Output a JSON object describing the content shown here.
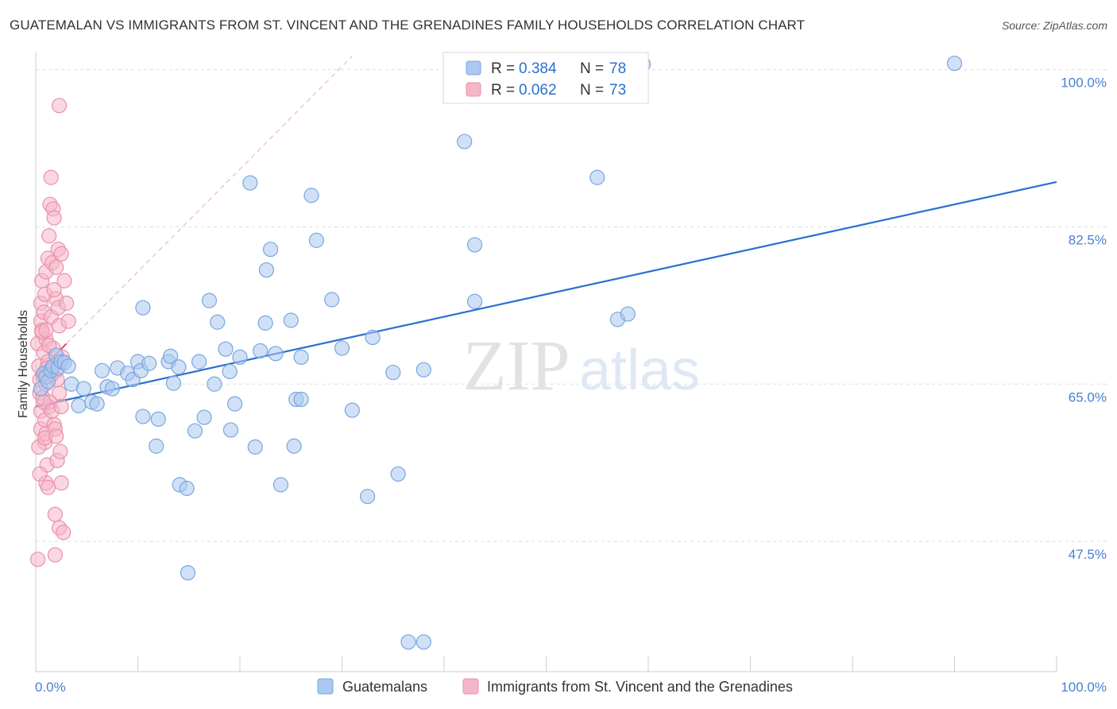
{
  "title": "GUATEMALAN VS IMMIGRANTS FROM ST. VINCENT AND THE GRENADINES FAMILY HOUSEHOLDS CORRELATION CHART",
  "source": "Source: ZipAtlas.com",
  "colors": {
    "blue_fill": "#aac8f0",
    "blue_stroke": "#7aa6dc",
    "blue_line": "#2a6fcf",
    "pink_fill": "#f5b6c8",
    "pink_stroke": "#e891ad",
    "pink_line": "#e0507f",
    "tick_label": "#4a80d0",
    "grid": "#dddddd"
  },
  "legend": {
    "rows": [
      {
        "r_label": "R = ",
        "r_value": "0.384",
        "n_label": "N = ",
        "n_value": "78"
      },
      {
        "r_label": "R = ",
        "r_value": "0.062",
        "n_label": "N = ",
        "n_value": "73"
      }
    ]
  },
  "bottom_legend": [
    "Guatemalans",
    "Immigrants from St. Vincent and the Grenadines"
  ],
  "chart_data": {
    "type": "scatter",
    "xlabel": "",
    "ylabel": "Family Households",
    "x_tick_labels": [
      "0.0%",
      "100.0%"
    ],
    "y_tick_labels": [
      "100.0%",
      "82.5%",
      "65.0%",
      "47.5%"
    ],
    "y_ticks": [
      100.0,
      82.5,
      65.0,
      47.5
    ],
    "xlim": [
      0,
      100
    ],
    "ylim": [
      33,
      102
    ],
    "grid": true,
    "watermark": "ZIPatlas",
    "series": [
      {
        "name": "Guatemalans",
        "points": [
          [
            0.5,
            64.5
          ],
          [
            0.8,
            66.2
          ],
          [
            1.0,
            65.8
          ],
          [
            1.2,
            65.3
          ],
          [
            1.5,
            66.5
          ],
          [
            1.7,
            67.0
          ],
          [
            2.0,
            68.2
          ],
          [
            2.2,
            66.8
          ],
          [
            2.5,
            67.5
          ],
          [
            2.8,
            67.4
          ],
          [
            3.2,
            67.0
          ],
          [
            3.5,
            65.0
          ],
          [
            4.2,
            62.6
          ],
          [
            4.7,
            64.5
          ],
          [
            5.5,
            63.0
          ],
          [
            6.0,
            62.8
          ],
          [
            6.5,
            66.5
          ],
          [
            7.0,
            64.7
          ],
          [
            7.5,
            64.5
          ],
          [
            8.0,
            66.8
          ],
          [
            9.0,
            66.2
          ],
          [
            9.5,
            65.5
          ],
          [
            10.0,
            67.5
          ],
          [
            10.3,
            66.5
          ],
          [
            10.5,
            61.4
          ],
          [
            10.5,
            73.5
          ],
          [
            11.1,
            67.3
          ],
          [
            11.8,
            58.1
          ],
          [
            12.0,
            61.1
          ],
          [
            13.0,
            67.5
          ],
          [
            13.2,
            68.1
          ],
          [
            13.5,
            65.1
          ],
          [
            14.0,
            66.9
          ],
          [
            14.1,
            53.8
          ],
          [
            14.8,
            53.4
          ],
          [
            14.9,
            44.0
          ],
          [
            15.6,
            59.8
          ],
          [
            16.0,
            67.5
          ],
          [
            16.5,
            61.3
          ],
          [
            17.0,
            74.3
          ],
          [
            17.5,
            65.0
          ],
          [
            17.8,
            71.9
          ],
          [
            18.6,
            68.9
          ],
          [
            19.0,
            66.4
          ],
          [
            19.1,
            59.9
          ],
          [
            19.5,
            62.8
          ],
          [
            20.0,
            68.0
          ],
          [
            21.0,
            87.4
          ],
          [
            21.5,
            58.0
          ],
          [
            22.0,
            68.7
          ],
          [
            22.5,
            71.8
          ],
          [
            22.6,
            77.7
          ],
          [
            23.0,
            80.0
          ],
          [
            23.5,
            68.4
          ],
          [
            24.0,
            53.8
          ],
          [
            25.0,
            72.1
          ],
          [
            25.3,
            58.1
          ],
          [
            25.5,
            63.3
          ],
          [
            26.0,
            63.3
          ],
          [
            26.0,
            68.0
          ],
          [
            27.0,
            86.0
          ],
          [
            27.5,
            81.0
          ],
          [
            29.0,
            74.4
          ],
          [
            30.0,
            69.0
          ],
          [
            31.0,
            62.1
          ],
          [
            32.5,
            52.5
          ],
          [
            33.0,
            70.2
          ],
          [
            35.0,
            66.3
          ],
          [
            35.5,
            55.0
          ],
          [
            36.5,
            36.3
          ],
          [
            38.0,
            36.3
          ],
          [
            38.0,
            66.6
          ],
          [
            42.0,
            92.0
          ],
          [
            43.0,
            80.5
          ],
          [
            43.0,
            74.2
          ],
          [
            55.0,
            88.0
          ],
          [
            57.0,
            72.2
          ],
          [
            58.0,
            72.8
          ],
          [
            59.5,
            100.6
          ],
          [
            90.0,
            100.7
          ]
        ]
      },
      {
        "name": "Immigrants from St. Vincent and the Grenadines",
        "points": [
          [
            0.2,
            69.5
          ],
          [
            0.3,
            67.0
          ],
          [
            0.4,
            65.5
          ],
          [
            0.4,
            64.0
          ],
          [
            0.5,
            72.0
          ],
          [
            0.5,
            74.0
          ],
          [
            0.5,
            62.0
          ],
          [
            0.5,
            60.0
          ],
          [
            0.6,
            76.5
          ],
          [
            0.6,
            71.0
          ],
          [
            0.7,
            66.0
          ],
          [
            0.7,
            63.5
          ],
          [
            0.8,
            68.5
          ],
          [
            0.8,
            73.0
          ],
          [
            0.9,
            75.0
          ],
          [
            0.9,
            61.0
          ],
          [
            0.9,
            58.5
          ],
          [
            1.0,
            77.5
          ],
          [
            1.0,
            70.0
          ],
          [
            1.0,
            65.0
          ],
          [
            1.0,
            59.5
          ],
          [
            1.0,
            54.0
          ],
          [
            1.1,
            56.0
          ],
          [
            1.2,
            79.0
          ],
          [
            1.2,
            67.5
          ],
          [
            1.3,
            81.5
          ],
          [
            1.3,
            62.5
          ],
          [
            1.4,
            85.0
          ],
          [
            1.4,
            63.0
          ],
          [
            1.5,
            88.0
          ],
          [
            1.5,
            72.5
          ],
          [
            1.6,
            78.5
          ],
          [
            1.7,
            84.5
          ],
          [
            1.7,
            69.0
          ],
          [
            1.8,
            83.5
          ],
          [
            1.8,
            60.5
          ],
          [
            1.9,
            46.0
          ],
          [
            1.9,
            50.5
          ],
          [
            2.0,
            78.0
          ],
          [
            2.0,
            74.5
          ],
          [
            2.0,
            66.5
          ],
          [
            2.1,
            56.5
          ],
          [
            2.2,
            80.0
          ],
          [
            2.2,
            73.5
          ],
          [
            2.3,
            96.0
          ],
          [
            2.3,
            71.5
          ],
          [
            2.3,
            64.0
          ],
          [
            2.3,
            49.0
          ],
          [
            2.4,
            57.5
          ],
          [
            2.5,
            79.5
          ],
          [
            2.5,
            54.0
          ],
          [
            2.6,
            68.0
          ],
          [
            2.7,
            48.5
          ],
          [
            2.8,
            76.5
          ],
          [
            3.0,
            74.0
          ],
          [
            3.2,
            72.0
          ],
          [
            2.1,
            65.5
          ],
          [
            1.5,
            66.0
          ],
          [
            1.1,
            66.8
          ],
          [
            0.6,
            70.8
          ],
          [
            0.8,
            63.0
          ],
          [
            1.3,
            69.3
          ],
          [
            1.9,
            60.0
          ],
          [
            0.3,
            58.0
          ],
          [
            0.9,
            59.0
          ],
          [
            1.6,
            62.0
          ],
          [
            0.4,
            55.0
          ],
          [
            1.2,
            53.5
          ],
          [
            2.0,
            59.2
          ],
          [
            2.5,
            62.5
          ],
          [
            0.2,
            45.5
          ],
          [
            1.0,
            71.0
          ],
          [
            1.8,
            75.5
          ]
        ]
      }
    ],
    "trend_lines": [
      {
        "series": "Guatemalans",
        "from": [
          0,
          62.5
        ],
        "to": [
          100,
          87.5
        ],
        "style": "solid"
      },
      {
        "series": "Immigrants from St. Vincent and the Grenadines",
        "from": [
          0,
          66.0
        ],
        "to": [
          3.0,
          69.5
        ],
        "style": "solid"
      },
      {
        "series": "Immigrants from St. Vincent and the Grenadines",
        "from": [
          3.0,
          69.5
        ],
        "to": [
          31.0,
          101.5
        ],
        "style": "dashed"
      }
    ]
  }
}
